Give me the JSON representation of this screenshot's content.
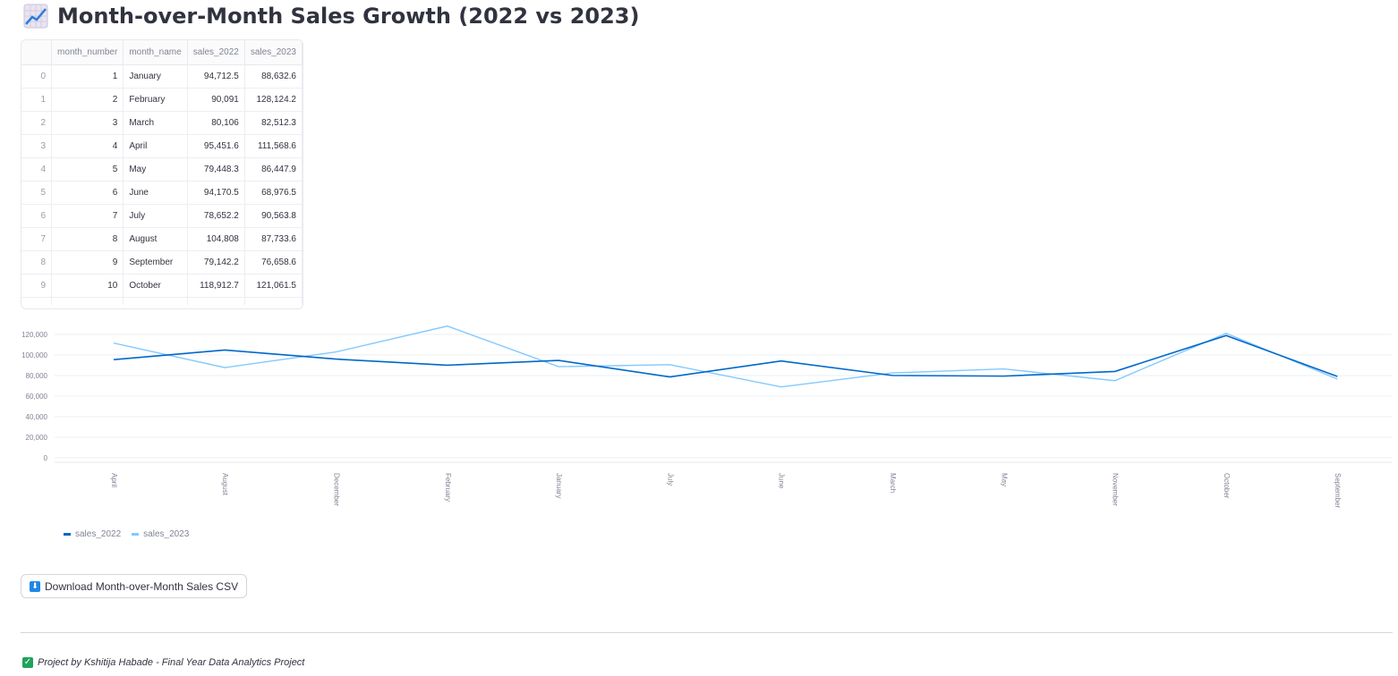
{
  "header": {
    "title": "Month-over-Month Sales Growth (2022 vs 2023)",
    "icon": "chart-increasing-icon"
  },
  "table": {
    "columns": [
      "month_number",
      "month_name",
      "sales_2022",
      "sales_2023"
    ],
    "rows": [
      {
        "index": "0",
        "month_number": "1",
        "month_name": "January",
        "sales_2022": "94,712.5",
        "sales_2023": "88,632.6"
      },
      {
        "index": "1",
        "month_number": "2",
        "month_name": "February",
        "sales_2022": "90,091",
        "sales_2023": "128,124.2"
      },
      {
        "index": "2",
        "month_number": "3",
        "month_name": "March",
        "sales_2022": "80,106",
        "sales_2023": "82,512.3"
      },
      {
        "index": "3",
        "month_number": "4",
        "month_name": "April",
        "sales_2022": "95,451.6",
        "sales_2023": "111,568.6"
      },
      {
        "index": "4",
        "month_number": "5",
        "month_name": "May",
        "sales_2022": "79,448.3",
        "sales_2023": "86,447.9"
      },
      {
        "index": "5",
        "month_number": "6",
        "month_name": "June",
        "sales_2022": "94,170.5",
        "sales_2023": "68,976.5"
      },
      {
        "index": "6",
        "month_number": "7",
        "month_name": "July",
        "sales_2022": "78,652.2",
        "sales_2023": "90,563.8"
      },
      {
        "index": "7",
        "month_number": "8",
        "month_name": "August",
        "sales_2022": "104,808",
        "sales_2023": "87,733.6"
      },
      {
        "index": "8",
        "month_number": "9",
        "month_name": "September",
        "sales_2022": "79,142.2",
        "sales_2023": "76,658.6"
      },
      {
        "index": "9",
        "month_number": "10",
        "month_name": "October",
        "sales_2022": "118,912.7",
        "sales_2023": "121,061.5"
      }
    ]
  },
  "chart_data": {
    "type": "line",
    "categories": [
      "April",
      "August",
      "December",
      "February",
      "January",
      "July",
      "June",
      "March",
      "May",
      "November",
      "October",
      "September"
    ],
    "series": [
      {
        "name": "sales_2022",
        "color": "#0068c9",
        "values": [
          95451.6,
          104808,
          96000,
          90091,
          94712.5,
          78652.2,
          94170.5,
          80106,
          79448.3,
          84000,
          118912.7,
          79142.2
        ]
      },
      {
        "name": "sales_2023",
        "color": "#83c9ff",
        "values": [
          111568.6,
          87733.6,
          103000,
          128124.2,
          88632.6,
          90563.8,
          68976.5,
          82512.3,
          86447.9,
          75000,
          121061.5,
          76658.6
        ]
      }
    ],
    "y_ticks": [
      "0",
      "20,000",
      "40,000",
      "60,000",
      "80,000",
      "100,000",
      "120,000"
    ],
    "ylim": [
      0,
      120000
    ],
    "grid": true,
    "legend_position": "bottom-left"
  },
  "download": {
    "label": "Download Month-over-Month Sales CSV",
    "icon": "download-arrow-icon"
  },
  "footer": {
    "text": "Project by Kshitija Habade - Final Year Data Analytics Project",
    "icon": "check-mark-icon"
  }
}
